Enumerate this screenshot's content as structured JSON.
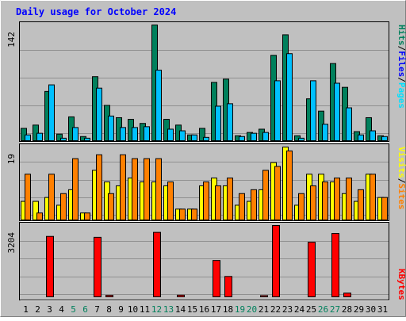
{
  "title": "Daily usage for October 2024",
  "colors": {
    "background": "#c0c0c0",
    "title": "#0000ff",
    "hits": "#00805c",
    "files": "#00c0ff",
    "pages": "#00e0ff",
    "visits": "#ffff00",
    "sites": "#ff8000",
    "kbytes": "#ff0000",
    "weekend": "#00805c",
    "weekday": "#000000"
  },
  "chart_data": [
    {
      "type": "bar",
      "name": "hits-files-pages",
      "ymax_label": "142",
      "ylim": [
        0,
        142
      ],
      "legend": [
        "Pages",
        "Files",
        "Hits"
      ],
      "categories": [
        "1",
        "2",
        "3",
        "4",
        "5",
        "6",
        "7",
        "8",
        "9",
        "10",
        "11",
        "12",
        "13",
        "14",
        "15",
        "16",
        "17",
        "18",
        "19",
        "20",
        "21",
        "22",
        "23",
        "24",
        "25",
        "26",
        "27",
        "28",
        "29",
        "30",
        "31"
      ],
      "series": [
        {
          "name": "Hits",
          "values": [
            16,
            20,
            61,
            9,
            30,
            6,
            79,
            44,
            29,
            27,
            22,
            142,
            27,
            20,
            8,
            16,
            72,
            76,
            7,
            11,
            15,
            105,
            130,
            7,
            52,
            37,
            95,
            66,
            12,
            29,
            7
          ]
        },
        {
          "name": "Files",
          "values": [
            8,
            10,
            69,
            4,
            17,
            4,
            65,
            31,
            17,
            17,
            18,
            87,
            15,
            13,
            8,
            5,
            43,
            46,
            6,
            10,
            11,
            74,
            107,
            4,
            74,
            21,
            71,
            41,
            8,
            13,
            6
          ]
        },
        {
          "name": "Pages",
          "values": [
            0,
            0,
            0,
            0,
            0,
            0,
            0,
            0,
            0,
            0,
            0,
            0,
            0,
            0,
            0,
            0,
            0,
            0,
            0,
            0,
            0,
            0,
            0,
            0,
            0,
            0,
            0,
            0,
            0,
            0,
            0
          ]
        }
      ]
    },
    {
      "type": "bar",
      "name": "visits-sites",
      "ymax_label": "19",
      "ylim": [
        0,
        19
      ],
      "legend": [
        "Sites",
        "Visits"
      ],
      "categories": [
        "1",
        "2",
        "3",
        "4",
        "5",
        "6",
        "7",
        "8",
        "9",
        "10",
        "11",
        "12",
        "13",
        "14",
        "15",
        "16",
        "17",
        "18",
        "19",
        "20",
        "21",
        "22",
        "23",
        "24",
        "25",
        "26",
        "27",
        "28",
        "29",
        "30",
        "31"
      ],
      "series": [
        {
          "name": "Visits",
          "values": [
            5,
            5,
            6,
            4,
            8,
            2,
            13,
            10,
            9,
            11,
            10,
            10,
            9,
            3,
            3,
            9,
            11,
            9,
            4,
            5,
            8,
            15,
            19,
            4,
            12,
            12,
            10,
            7,
            5,
            12,
            6
          ]
        },
        {
          "name": "Sites",
          "values": [
            12,
            2,
            12,
            7,
            16,
            2,
            17,
            7,
            17,
            16,
            16,
            16,
            10,
            3,
            3,
            10,
            9,
            11,
            7,
            8,
            13,
            14,
            18,
            7,
            9,
            10,
            11,
            11,
            8,
            12,
            6
          ]
        }
      ]
    },
    {
      "type": "bar",
      "name": "kbytes",
      "ymax_label": "3204",
      "ylim": [
        0,
        3204
      ],
      "legend": [
        "KBytes"
      ],
      "categories": [
        "1",
        "2",
        "3",
        "4",
        "5",
        "6",
        "7",
        "8",
        "9",
        "10",
        "11",
        "12",
        "13",
        "14",
        "15",
        "16",
        "17",
        "18",
        "19",
        "20",
        "21",
        "22",
        "23",
        "24",
        "25",
        "26",
        "27",
        "28",
        "29",
        "30",
        "31"
      ],
      "weekend_days": [
        "5",
        "6",
        "12",
        "13",
        "19",
        "20",
        "26",
        "27"
      ],
      "series": [
        {
          "name": "KBytes",
          "values": [
            0,
            0,
            2720,
            0,
            0,
            0,
            2680,
            100,
            0,
            0,
            0,
            2900,
            0,
            110,
            0,
            0,
            1650,
            940,
            0,
            0,
            90,
            3204,
            0,
            0,
            2460,
            0,
            2850,
            200,
            0,
            0,
            0
          ]
        }
      ]
    }
  ]
}
